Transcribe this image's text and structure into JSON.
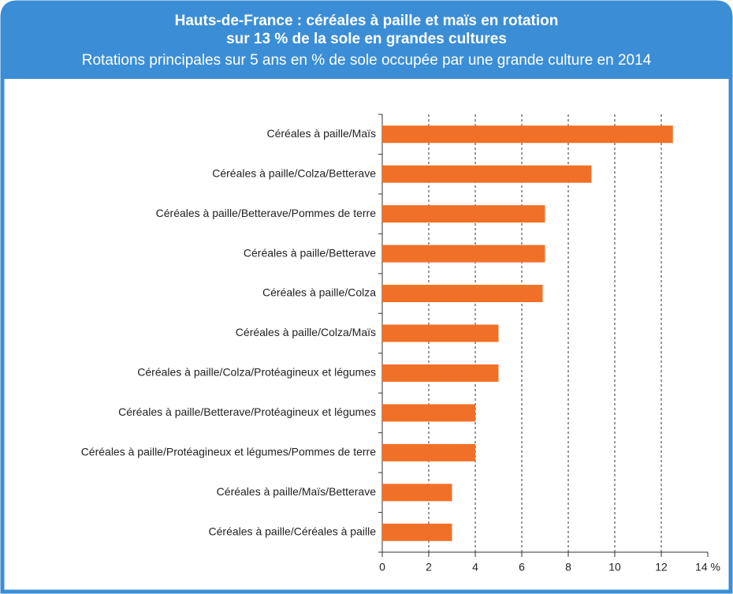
{
  "chart_data": {
    "type": "bar",
    "orientation": "horizontal",
    "title": [
      "Hauts-de-France : céréales à paille et maïs en rotation",
      "sur 13 % de la sole en grandes cultures"
    ],
    "subtitle": "Rotations principales sur 5 ans en % de sole occupée  par une grande culture en 2014",
    "categories": [
      "Céréales à paille/Maïs",
      "Céréales à paille/Colza/Betterave",
      "Céréales à paille/Betterave/Pommes de terre",
      "Céréales à paille/Betterave",
      "Céréales à paille/Colza",
      "Céréales à paille/Colza/Maïs",
      "Céréales à paille/Colza/Protéagineux et légumes",
      "Céréales à paille/Betterave/Protéagineux et légumes",
      "Céréales à paille/Protéagineux et légumes/Pommes de terre",
      "Céréales à paille/Maïs/Betterave",
      "Céréales à paille/Céréales à paille"
    ],
    "values": [
      12.5,
      9.0,
      7.0,
      7.0,
      6.9,
      5.0,
      5.0,
      4.0,
      4.0,
      3.0,
      3.0
    ],
    "color": "#f07028",
    "xlim": [
      0,
      14
    ],
    "xticks": [
      0,
      2,
      4,
      6,
      8,
      10,
      12,
      {
        "value": 14,
        "label": "14 %"
      }
    ],
    "grid": true
  }
}
